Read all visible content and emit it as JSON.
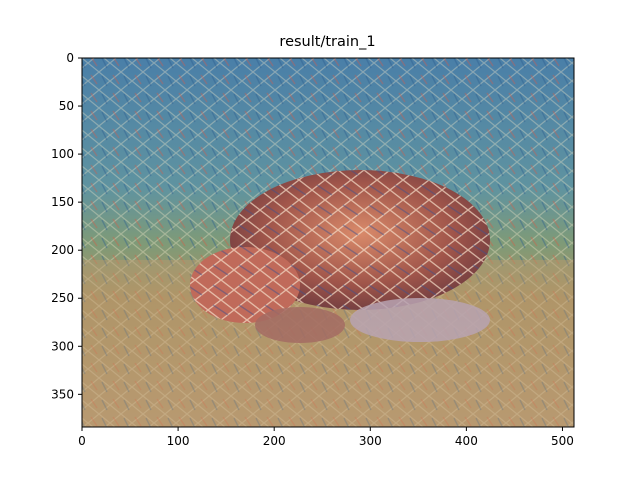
{
  "figure": {
    "title": "result/train_1",
    "image_description_icon": "style-transfer-turtle-image",
    "x_ticks": [
      "0",
      "100",
      "200",
      "300",
      "400",
      "500"
    ],
    "y_ticks": [
      "0",
      "50",
      "100",
      "150",
      "200",
      "250",
      "300",
      "350"
    ],
    "x_tick_values": [
      0,
      100,
      200,
      300,
      400,
      500
    ],
    "y_tick_values": [
      0,
      50,
      100,
      150,
      200,
      250,
      300,
      350
    ],
    "x_range": [
      0,
      512
    ],
    "y_range": [
      0,
      384
    ]
  }
}
